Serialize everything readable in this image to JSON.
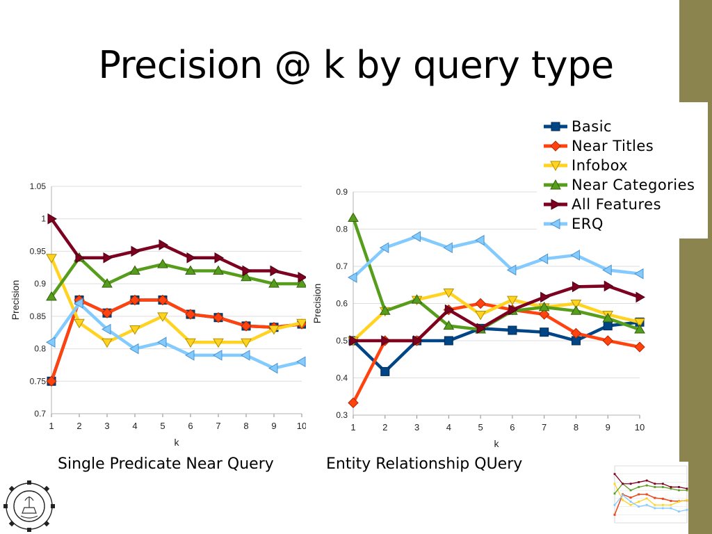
{
  "slide": {
    "title": "Precision @ k by query type",
    "caption_left": "Single Predicate Near Query",
    "caption_right": "Entity Relationship QUery"
  },
  "legend": [
    {
      "name": "Basic",
      "color": "#004586",
      "marker": "square"
    },
    {
      "name": "Near Titles",
      "color": "#ff420e",
      "marker": "diamond"
    },
    {
      "name": "Infobox",
      "color": "#ffd320",
      "marker": "triangle-down"
    },
    {
      "name": "Near Categories",
      "color": "#579d1c",
      "marker": "triangle-up"
    },
    {
      "name": "All Features",
      "color": "#7e0021",
      "marker": "triangle-right"
    },
    {
      "name": "ERQ",
      "color": "#83caff",
      "marker": "triangle-left"
    }
  ],
  "chart_data": [
    {
      "type": "line",
      "title": "Single Predicate Near Query",
      "xlabel": "k",
      "ylabel": "Precision",
      "x": [
        1,
        2,
        3,
        4,
        5,
        6,
        7,
        8,
        9,
        10
      ],
      "xticks": [
        "1",
        "2",
        "3",
        "4",
        "5",
        "6",
        "7",
        "8",
        "9",
        "10"
      ],
      "ylim": [
        0.7,
        1.05
      ],
      "yticks": [
        "0.7",
        "0.75",
        "0.8",
        "0.85",
        "0.9",
        "0.95",
        "1",
        "1.05"
      ],
      "yticks_values": [
        0.7,
        0.75,
        0.8,
        0.85,
        0.9,
        0.95,
        1.0,
        1.05
      ],
      "grid": true,
      "series": [
        {
          "name": "Basic",
          "values": [
            0.75,
            0.875,
            0.855,
            0.875,
            0.875,
            0.853,
            0.848,
            0.835,
            0.833,
            0.838
          ]
        },
        {
          "name": "Near Titles",
          "values": [
            0.75,
            0.875,
            0.855,
            0.875,
            0.875,
            0.853,
            0.848,
            0.835,
            0.833,
            0.838
          ]
        },
        {
          "name": "Infobox",
          "values": [
            0.94,
            0.84,
            0.81,
            0.83,
            0.85,
            0.81,
            0.81,
            0.81,
            0.83,
            0.84
          ]
        },
        {
          "name": "Near Categories",
          "values": [
            0.88,
            0.94,
            0.9,
            0.92,
            0.93,
            0.92,
            0.92,
            0.91,
            0.9,
            0.9
          ]
        },
        {
          "name": "All Features",
          "values": [
            1.0,
            0.94,
            0.94,
            0.95,
            0.96,
            0.94,
            0.94,
            0.92,
            0.92,
            0.91
          ]
        },
        {
          "name": "ERQ",
          "values": [
            0.81,
            0.87,
            0.83,
            0.8,
            0.81,
            0.79,
            0.79,
            0.79,
            0.77,
            0.78
          ]
        }
      ]
    },
    {
      "type": "line",
      "title": "Entity Relationship QUery",
      "xlabel": "k",
      "ylabel": "Precision",
      "x": [
        1,
        2,
        3,
        4,
        5,
        6,
        7,
        8,
        9,
        10
      ],
      "xticks": [
        "1",
        "2",
        "3",
        "4",
        "5",
        "6",
        "7",
        "8",
        "9",
        "10"
      ],
      "ylim": [
        0.3,
        0.9
      ],
      "yticks": [
        "0.3",
        "0.4",
        "0.5",
        "0.6",
        "0.7",
        "0.8",
        "0.9"
      ],
      "yticks_values": [
        0.3,
        0.4,
        0.5,
        0.6,
        0.7,
        0.8,
        0.9
      ],
      "grid": true,
      "series": [
        {
          "name": "Basic",
          "values": [
            0.5,
            0.417,
            0.5,
            0.5,
            0.533,
            0.528,
            0.523,
            0.5,
            0.54,
            0.55
          ]
        },
        {
          "name": "Near Titles",
          "values": [
            0.333,
            0.5,
            0.5,
            0.583,
            0.6,
            0.583,
            0.571,
            0.52,
            0.5,
            0.483
          ]
        },
        {
          "name": "Infobox",
          "values": [
            0.5,
            0.58,
            0.61,
            0.63,
            0.57,
            0.61,
            0.59,
            0.6,
            0.57,
            0.55
          ]
        },
        {
          "name": "Near Categories",
          "values": [
            0.83,
            0.58,
            0.61,
            0.54,
            0.53,
            0.58,
            0.59,
            0.58,
            0.56,
            0.53
          ]
        },
        {
          "name": "All Features",
          "values": [
            0.5,
            0.5,
            0.5,
            0.583,
            0.533,
            0.583,
            0.617,
            0.645,
            0.647,
            0.617
          ]
        },
        {
          "name": "ERQ",
          "values": [
            0.67,
            0.75,
            0.78,
            0.75,
            0.77,
            0.69,
            0.72,
            0.73,
            0.69,
            0.68
          ]
        }
      ]
    }
  ]
}
